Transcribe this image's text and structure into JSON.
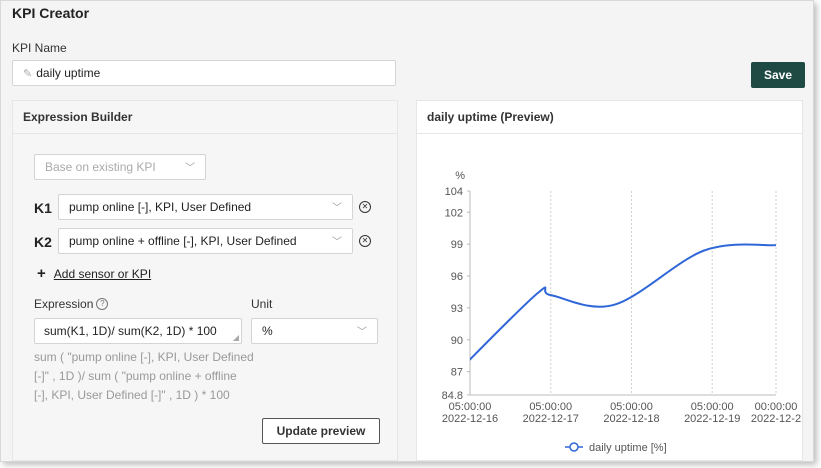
{
  "app": {
    "title": "KPI Creator"
  },
  "kpi_name": {
    "label": "KPI Name",
    "value": "daily uptime"
  },
  "save_label": "Save",
  "builder": {
    "title": "Expression Builder",
    "base_placeholder": "Base on existing KPI",
    "k1": {
      "label": "K1",
      "value": "pump online [-], KPI, User Defined"
    },
    "k2": {
      "label": "K2",
      "value": "pump online + offline [-], KPI, User Defined"
    },
    "add_label": "Add sensor or KPI",
    "expression_label": "Expression",
    "expression_value": "sum(K1, 1D)/ sum(K2, 1D) * 100",
    "unit_label": "Unit",
    "unit_value": "%",
    "expression_preview_lines": [
      "sum ( \"pump online [-], KPI, User Defined",
      "[-]\" , 1D )/ sum ( \"pump online + offline",
      "[-], KPI, User Defined [-]\" , 1D ) * 100"
    ],
    "update_label": "Update preview"
  },
  "preview": {
    "title": "daily uptime (Preview)"
  },
  "icons": {
    "pencil": "pencil-icon",
    "chevron": "chevron-down-icon",
    "clear": "clear-circle-icon",
    "plus": "plus-icon",
    "help": "help-circle-icon"
  },
  "colors": {
    "accent": "#1f4a44",
    "line": "#2f67d8"
  },
  "chart_data": {
    "type": "line",
    "ylabel": "%",
    "y_ticks": [
      84.8,
      87,
      90,
      93,
      96,
      99,
      102,
      104
    ],
    "ylim": [
      84.8,
      104
    ],
    "x_ticks": [
      {
        "time": "05:00:00",
        "date": "2022-12-16"
      },
      {
        "time": "05:00:00",
        "date": "2022-12-17"
      },
      {
        "time": "05:00:00",
        "date": "2022-12-18"
      },
      {
        "time": "05:00:00",
        "date": "2022-12-19"
      },
      {
        "time": "00:00:00",
        "date": "2022-12-2"
      }
    ],
    "x_tick_days": [
      0,
      1,
      2,
      3,
      3.79
    ],
    "xlim": [
      0,
      3.79
    ],
    "series": [
      {
        "name": "daily uptime [%]",
        "x": [
          -0.15,
          0.84,
          1.0,
          1.79,
          2.9,
          3.79
        ],
        "y": [
          87.0,
          94.4,
          94.2,
          93.3,
          98.4,
          98.9
        ]
      }
    ],
    "grid": true,
    "legend": "bottom"
  }
}
